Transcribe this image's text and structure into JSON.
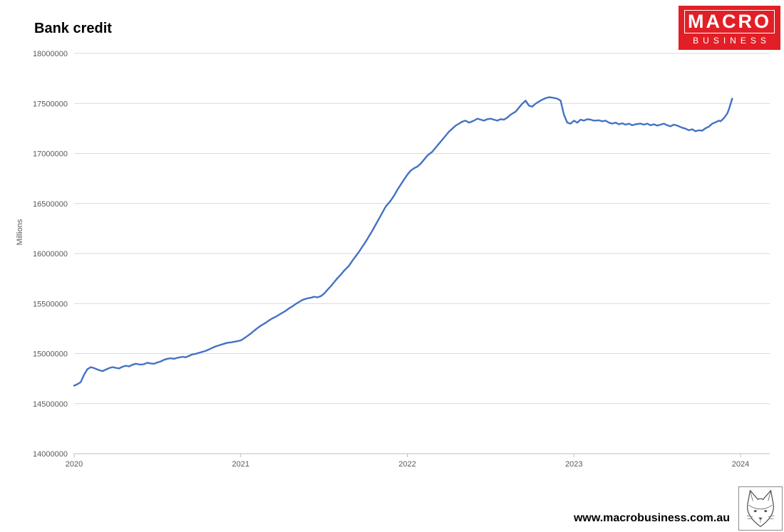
{
  "header": {
    "title": "Bank credit"
  },
  "logo": {
    "line1": "MACRO",
    "line2": "BUSINESS",
    "bg_color": "#e21f26"
  },
  "footer": {
    "url": "www.macrobusiness.com.au"
  },
  "chart_data": {
    "type": "line",
    "title": "Bank credit",
    "xlabel": "",
    "ylabel": "Millions",
    "ylim": [
      14000000,
      18000000
    ],
    "y_ticks": [
      14000000,
      14500000,
      15000000,
      15500000,
      16000000,
      16500000,
      17000000,
      17500000,
      18000000
    ],
    "x_ticks": [
      2020,
      2021,
      2022,
      2023,
      2024
    ],
    "grid": true,
    "legend": "none",
    "line_color": "#4472c4",
    "series_name": "Bank credit",
    "points": [
      [
        2020.0,
        14680000
      ],
      [
        2020.02,
        14695000
      ],
      [
        2020.04,
        14715000
      ],
      [
        2020.06,
        14790000
      ],
      [
        2020.08,
        14845000
      ],
      [
        2020.1,
        14865000
      ],
      [
        2020.12,
        14855000
      ],
      [
        2020.15,
        14835000
      ],
      [
        2020.17,
        14825000
      ],
      [
        2020.19,
        14840000
      ],
      [
        2020.21,
        14855000
      ],
      [
        2020.23,
        14865000
      ],
      [
        2020.25,
        14858000
      ],
      [
        2020.27,
        14852000
      ],
      [
        2020.29,
        14868000
      ],
      [
        2020.31,
        14878000
      ],
      [
        2020.33,
        14872000
      ],
      [
        2020.35,
        14888000
      ],
      [
        2020.37,
        14898000
      ],
      [
        2020.4,
        14890000
      ],
      [
        2020.42,
        14895000
      ],
      [
        2020.44,
        14908000
      ],
      [
        2020.46,
        14902000
      ],
      [
        2020.48,
        14898000
      ],
      [
        2020.5,
        14912000
      ],
      [
        2020.52,
        14922000
      ],
      [
        2020.54,
        14938000
      ],
      [
        2020.56,
        14948000
      ],
      [
        2020.58,
        14953000
      ],
      [
        2020.6,
        14948000
      ],
      [
        2020.62,
        14958000
      ],
      [
        2020.65,
        14968000
      ],
      [
        2020.67,
        14963000
      ],
      [
        2020.69,
        14978000
      ],
      [
        2020.71,
        14992000
      ],
      [
        2020.73,
        14998000
      ],
      [
        2020.75,
        15008000
      ],
      [
        2020.77,
        15018000
      ],
      [
        2020.79,
        15028000
      ],
      [
        2020.81,
        15042000
      ],
      [
        2020.83,
        15058000
      ],
      [
        2020.85,
        15072000
      ],
      [
        2020.88,
        15088000
      ],
      [
        2020.9,
        15098000
      ],
      [
        2020.92,
        15108000
      ],
      [
        2020.94,
        15112000
      ],
      [
        2020.96,
        15118000
      ],
      [
        2020.98,
        15124000
      ],
      [
        2021.0,
        15132000
      ],
      [
        2021.02,
        15152000
      ],
      [
        2021.04,
        15176000
      ],
      [
        2021.06,
        15200000
      ],
      [
        2021.08,
        15228000
      ],
      [
        2021.1,
        15254000
      ],
      [
        2021.12,
        15278000
      ],
      [
        2021.15,
        15308000
      ],
      [
        2021.17,
        15332000
      ],
      [
        2021.19,
        15352000
      ],
      [
        2021.21,
        15368000
      ],
      [
        2021.23,
        15388000
      ],
      [
        2021.25,
        15408000
      ],
      [
        2021.27,
        15428000
      ],
      [
        2021.29,
        15452000
      ],
      [
        2021.31,
        15472000
      ],
      [
        2021.33,
        15496000
      ],
      [
        2021.35,
        15516000
      ],
      [
        2021.37,
        15536000
      ],
      [
        2021.4,
        15552000
      ],
      [
        2021.42,
        15558000
      ],
      [
        2021.44,
        15568000
      ],
      [
        2021.46,
        15562000
      ],
      [
        2021.48,
        15574000
      ],
      [
        2021.5,
        15598000
      ],
      [
        2021.52,
        15636000
      ],
      [
        2021.54,
        15672000
      ],
      [
        2021.56,
        15712000
      ],
      [
        2021.58,
        15752000
      ],
      [
        2021.6,
        15788000
      ],
      [
        2021.62,
        15828000
      ],
      [
        2021.65,
        15878000
      ],
      [
        2021.67,
        15928000
      ],
      [
        2021.69,
        15972000
      ],
      [
        2021.71,
        16018000
      ],
      [
        2021.73,
        16068000
      ],
      [
        2021.75,
        16118000
      ],
      [
        2021.77,
        16172000
      ],
      [
        2021.79,
        16228000
      ],
      [
        2021.81,
        16288000
      ],
      [
        2021.83,
        16348000
      ],
      [
        2021.85,
        16408000
      ],
      [
        2021.87,
        16468000
      ],
      [
        2021.9,
        16528000
      ],
      [
        2021.92,
        16578000
      ],
      [
        2021.94,
        16636000
      ],
      [
        2021.96,
        16688000
      ],
      [
        2021.98,
        16738000
      ],
      [
        2022.0,
        16788000
      ],
      [
        2022.02,
        16828000
      ],
      [
        2022.04,
        16852000
      ],
      [
        2022.06,
        16868000
      ],
      [
        2022.08,
        16898000
      ],
      [
        2022.1,
        16938000
      ],
      [
        2022.12,
        16978000
      ],
      [
        2022.15,
        17018000
      ],
      [
        2022.17,
        17058000
      ],
      [
        2022.19,
        17098000
      ],
      [
        2022.21,
        17138000
      ],
      [
        2022.23,
        17178000
      ],
      [
        2022.25,
        17218000
      ],
      [
        2022.27,
        17248000
      ],
      [
        2022.29,
        17278000
      ],
      [
        2022.31,
        17298000
      ],
      [
        2022.33,
        17318000
      ],
      [
        2022.35,
        17328000
      ],
      [
        2022.37,
        17308000
      ],
      [
        2022.4,
        17328000
      ],
      [
        2022.42,
        17348000
      ],
      [
        2022.44,
        17338000
      ],
      [
        2022.46,
        17328000
      ],
      [
        2022.48,
        17342000
      ],
      [
        2022.5,
        17348000
      ],
      [
        2022.52,
        17338000
      ],
      [
        2022.54,
        17328000
      ],
      [
        2022.56,
        17342000
      ],
      [
        2022.58,
        17338000
      ],
      [
        2022.6,
        17358000
      ],
      [
        2022.62,
        17388000
      ],
      [
        2022.65,
        17418000
      ],
      [
        2022.67,
        17458000
      ],
      [
        2022.69,
        17498000
      ],
      [
        2022.71,
        17528000
      ],
      [
        2022.73,
        17478000
      ],
      [
        2022.75,
        17468000
      ],
      [
        2022.77,
        17498000
      ],
      [
        2022.79,
        17518000
      ],
      [
        2022.81,
        17538000
      ],
      [
        2022.83,
        17552000
      ],
      [
        2022.85,
        17562000
      ],
      [
        2022.87,
        17558000
      ],
      [
        2022.9,
        17548000
      ],
      [
        2022.92,
        17528000
      ],
      [
        2022.94,
        17388000
      ],
      [
        2022.96,
        17308000
      ],
      [
        2022.98,
        17298000
      ],
      [
        2023.0,
        17328000
      ],
      [
        2023.02,
        17308000
      ],
      [
        2023.04,
        17338000
      ],
      [
        2023.06,
        17328000
      ],
      [
        2023.08,
        17342000
      ],
      [
        2023.1,
        17338000
      ],
      [
        2023.12,
        17328000
      ],
      [
        2023.15,
        17332000
      ],
      [
        2023.17,
        17322000
      ],
      [
        2023.19,
        17328000
      ],
      [
        2023.21,
        17308000
      ],
      [
        2023.23,
        17298000
      ],
      [
        2023.25,
        17308000
      ],
      [
        2023.27,
        17292000
      ],
      [
        2023.29,
        17302000
      ],
      [
        2023.31,
        17288000
      ],
      [
        2023.33,
        17298000
      ],
      [
        2023.35,
        17282000
      ],
      [
        2023.37,
        17292000
      ],
      [
        2023.4,
        17298000
      ],
      [
        2023.42,
        17288000
      ],
      [
        2023.44,
        17298000
      ],
      [
        2023.46,
        17282000
      ],
      [
        2023.48,
        17292000
      ],
      [
        2023.5,
        17278000
      ],
      [
        2023.52,
        17288000
      ],
      [
        2023.54,
        17298000
      ],
      [
        2023.56,
        17282000
      ],
      [
        2023.58,
        17272000
      ],
      [
        2023.6,
        17288000
      ],
      [
        2023.62,
        17278000
      ],
      [
        2023.65,
        17258000
      ],
      [
        2023.67,
        17248000
      ],
      [
        2023.69,
        17232000
      ],
      [
        2023.71,
        17242000
      ],
      [
        2023.73,
        17222000
      ],
      [
        2023.75,
        17232000
      ],
      [
        2023.77,
        17228000
      ],
      [
        2023.79,
        17252000
      ],
      [
        2023.81,
        17268000
      ],
      [
        2023.83,
        17298000
      ],
      [
        2023.85,
        17312000
      ],
      [
        2023.87,
        17328000
      ],
      [
        2023.88,
        17322000
      ],
      [
        2023.9,
        17352000
      ],
      [
        2023.92,
        17398000
      ],
      [
        2023.93,
        17438000
      ],
      [
        2023.95,
        17548000
      ]
    ]
  }
}
